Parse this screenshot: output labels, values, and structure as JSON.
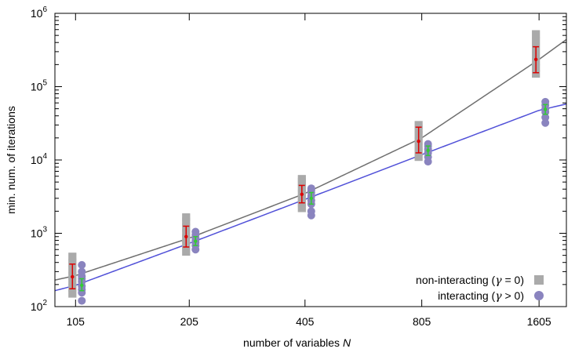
{
  "chart_data": {
    "type": "scatter",
    "title": "",
    "xlabel": "number of variables",
    "xlabel_symbol": "N",
    "ylabel": "min. num. of iterations",
    "yscale": "log",
    "xscale": "log",
    "xlim": [
      93,
      1885
    ],
    "ylim": [
      100,
      1000000
    ],
    "x_ticks": [
      105,
      205,
      405,
      805,
      1605
    ],
    "x_tick_labels": [
      "105",
      "205",
      "405",
      "805",
      "1605"
    ],
    "y_ticks": [
      100,
      1000,
      10000,
      100000,
      1000000
    ],
    "y_tick_labels": [
      {
        "base": "10",
        "exp": "2"
      },
      {
        "base": "10",
        "exp": "3"
      },
      {
        "base": "10",
        "exp": "4"
      },
      {
        "base": "10",
        "exp": "5"
      },
      {
        "base": "10",
        "exp": "6"
      }
    ],
    "legend": [
      {
        "series": "non-interacting",
        "text_pre": "non-interacting (",
        "gamma": "γ",
        "relation": " = 0)",
        "marker": "square",
        "color": "#aaaaaa"
      },
      {
        "series": "interacting",
        "text_pre": "interacting (",
        "gamma": "γ",
        "relation": " > 0)",
        "marker": "circle",
        "color": "#8a84bf"
      }
    ],
    "series": [
      {
        "name": "non-interacting",
        "marker": "square",
        "color": "#aaaaaa",
        "x": [
          105,
          205,
          405,
          805,
          1605
        ],
        "points": [
          [
            150,
            180,
            220,
            260,
            320,
            400,
            480
          ],
          [
            560,
            700,
            850,
            1000,
            1200,
            1450,
            1650
          ],
          [
            2200,
            2600,
            3000,
            3500,
            4200,
            5000,
            5500
          ],
          [
            11000,
            13000,
            15000,
            18000,
            22000,
            26000,
            30000
          ],
          [
            150000,
            180000,
            220000,
            260000,
            330000,
            420000,
            520000
          ]
        ]
      },
      {
        "name": "interacting",
        "marker": "circle",
        "color": "#8a84bf",
        "x": [
          105,
          205,
          405,
          805,
          1605
        ],
        "points": [
          [
            120,
            155,
            170,
            190,
            220,
            240,
            260,
            300,
            370
          ],
          [
            600,
            680,
            750,
            800,
            870,
            950,
            1050
          ],
          [
            1750,
            2000,
            2500,
            2800,
            3200,
            3600,
            3900,
            4100
          ],
          [
            9500,
            11000,
            12500,
            14000,
            15500,
            16500
          ],
          [
            32000,
            38000,
            45000,
            50000,
            56000,
            62000
          ]
        ]
      },
      {
        "name": "interacting mean",
        "color": "#33cc33",
        "x": [
          105,
          205,
          405,
          805,
          1605
        ],
        "y": [
          195,
          780,
          3000,
          13500,
          49000
        ],
        "y_low": [
          165,
          680,
          2500,
          11500,
          42000
        ],
        "y_high": [
          240,
          900,
          3600,
          15500,
          57000
        ]
      },
      {
        "name": "non-interacting mean",
        "color": "#dd0000",
        "x": [
          105,
          205,
          405,
          805,
          1605
        ],
        "y": [
          255,
          900,
          3400,
          18000,
          235000
        ],
        "y_low": [
          175,
          650,
          2600,
          12500,
          155000
        ],
        "y_high": [
          380,
          1250,
          4500,
          28000,
          350000
        ]
      }
    ],
    "fit_lines": [
      {
        "name": "non-interacting fit",
        "color": "#6f6f6f",
        "points": [
          [
            93,
            230
          ],
          [
            105,
            265
          ],
          [
            205,
            860
          ],
          [
            405,
            3500
          ],
          [
            805,
            20000
          ],
          [
            1605,
            235000
          ],
          [
            1885,
            440000
          ]
        ]
      },
      {
        "name": "interacting fit",
        "color": "#5050d8",
        "points": [
          [
            93,
            165
          ],
          [
            105,
            195
          ],
          [
            205,
            730
          ],
          [
            405,
            2900
          ],
          [
            805,
            11800
          ],
          [
            1605,
            47500
          ],
          [
            1885,
            58000
          ]
        ]
      }
    ]
  }
}
